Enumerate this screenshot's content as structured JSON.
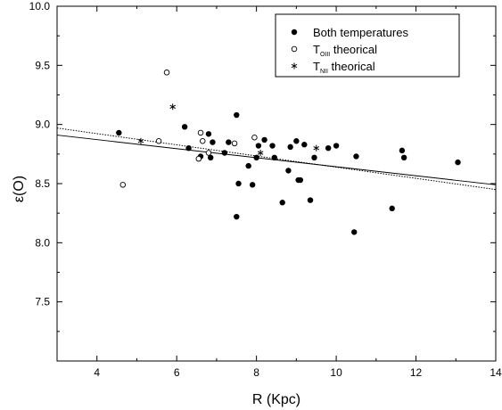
{
  "chart_data": {
    "type": "scatter",
    "xlabel": "R (Kpc)",
    "ylabel": "ε(O)",
    "xlim": [
      3,
      14
    ],
    "ylim": [
      7.0,
      10.0
    ],
    "xticks": [
      4,
      6,
      8,
      10,
      12,
      14
    ],
    "yticks": [
      7.5,
      8.0,
      8.5,
      9.0,
      9.5,
      10.0
    ],
    "grid": false,
    "legend_position": "top-right",
    "legend": [
      {
        "marker": "filled-circle",
        "label": "Both temperatures",
        "main": "Both temperatures",
        "sub": ""
      },
      {
        "marker": "open-circle",
        "label": "TOIII theorical",
        "main": "T",
        "sub": "OIII",
        "rest": " theorical"
      },
      {
        "marker": "asterisk",
        "label": "TNII theorical",
        "main": "T",
        "sub": "NII",
        "rest": " theorical"
      }
    ],
    "series": [
      {
        "name": "Both temperatures",
        "marker": "filled-circle",
        "points": [
          [
            4.55,
            8.93
          ],
          [
            6.2,
            8.98
          ],
          [
            6.3,
            8.8
          ],
          [
            6.6,
            8.73
          ],
          [
            6.8,
            8.92
          ],
          [
            6.85,
            8.72
          ],
          [
            6.9,
            8.85
          ],
          [
            7.2,
            8.76
          ],
          [
            7.3,
            8.85
          ],
          [
            7.5,
            9.08
          ],
          [
            7.55,
            8.5
          ],
          [
            7.5,
            8.22
          ],
          [
            7.8,
            8.65
          ],
          [
            7.9,
            8.49
          ],
          [
            8.0,
            8.72
          ],
          [
            8.05,
            8.82
          ],
          [
            8.2,
            8.87
          ],
          [
            8.4,
            8.82
          ],
          [
            8.45,
            8.72
          ],
          [
            8.65,
            8.34
          ],
          [
            8.8,
            8.61
          ],
          [
            8.85,
            8.81
          ],
          [
            9.0,
            8.86
          ],
          [
            9.05,
            8.53
          ],
          [
            9.1,
            8.53
          ],
          [
            9.2,
            8.83
          ],
          [
            9.35,
            8.36
          ],
          [
            9.45,
            8.72
          ],
          [
            9.8,
            8.8
          ],
          [
            10.0,
            8.82
          ],
          [
            10.45,
            8.09
          ],
          [
            10.5,
            8.73
          ],
          [
            11.4,
            8.29
          ],
          [
            11.65,
            8.78
          ],
          [
            11.7,
            8.72
          ],
          [
            13.05,
            8.68
          ]
        ]
      },
      {
        "name": "TOIII theorical",
        "marker": "open-circle",
        "points": [
          [
            4.65,
            8.49
          ],
          [
            5.55,
            8.86
          ],
          [
            5.75,
            9.44
          ],
          [
            6.55,
            8.71
          ],
          [
            6.6,
            8.93
          ],
          [
            6.65,
            8.86
          ],
          [
            6.8,
            8.76
          ],
          [
            7.45,
            8.84
          ],
          [
            7.95,
            8.89
          ]
        ]
      },
      {
        "name": "TNII theorical",
        "marker": "asterisk",
        "points": [
          [
            5.1,
            8.86
          ],
          [
            5.9,
            9.15
          ],
          [
            8.1,
            8.76
          ],
          [
            9.5,
            8.8
          ]
        ]
      }
    ],
    "fit_lines": [
      {
        "style": "solid",
        "from": [
          3,
          8.91
        ],
        "to": [
          14,
          8.49
        ]
      },
      {
        "style": "dotted",
        "from": [
          3,
          8.97
        ],
        "to": [
          14,
          8.45
        ]
      }
    ]
  }
}
